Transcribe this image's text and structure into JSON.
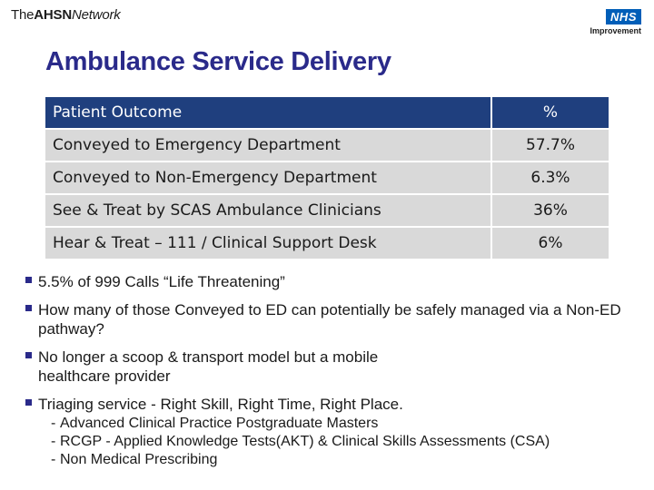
{
  "header": {
    "logo_the": "The",
    "logo_ahsn": "AHSN",
    "logo_network": "Network",
    "nhs_badge": "NHS",
    "nhs_sub": "Improvement"
  },
  "title": "Ambulance Service Delivery",
  "table": {
    "headers": [
      "Patient Outcome",
      "%"
    ],
    "rows": [
      {
        "outcome": "Conveyed to Emergency Department",
        "pct": "57.7%"
      },
      {
        "outcome": "Conveyed to Non-Emergency Department",
        "pct": "6.3%"
      },
      {
        "outcome": "See & Treat by SCAS Ambulance Clinicians",
        "pct": "36%"
      },
      {
        "outcome": "Hear & Treat – 111 / Clinical Support Desk",
        "pct": "6%"
      }
    ]
  },
  "bullets": [
    {
      "text": "5.5% of 999 Calls “Life Threatening”"
    },
    {
      "text": "How many of those Conveyed to ED can potentially be safely managed via a Non-ED pathway?"
    },
    {
      "text": "No longer a scoop & transport model but a mobile healthcare provider"
    },
    {
      "text": "Triaging service - Right Skill, Right Time, Right Place."
    }
  ],
  "sub_bullets": [
    "Advanced Clinical Practice Postgraduate Masters",
    "RCGP - Applied Knowledge Tests(AKT) & Clinical Skills Assessments (CSA)",
    "Non Medical Prescribing"
  ],
  "colors": {
    "title": "#2a2a8a",
    "table_header": "#1f3f7e",
    "table_row": "#d9d9d9",
    "nhs_blue": "#005eb8"
  }
}
